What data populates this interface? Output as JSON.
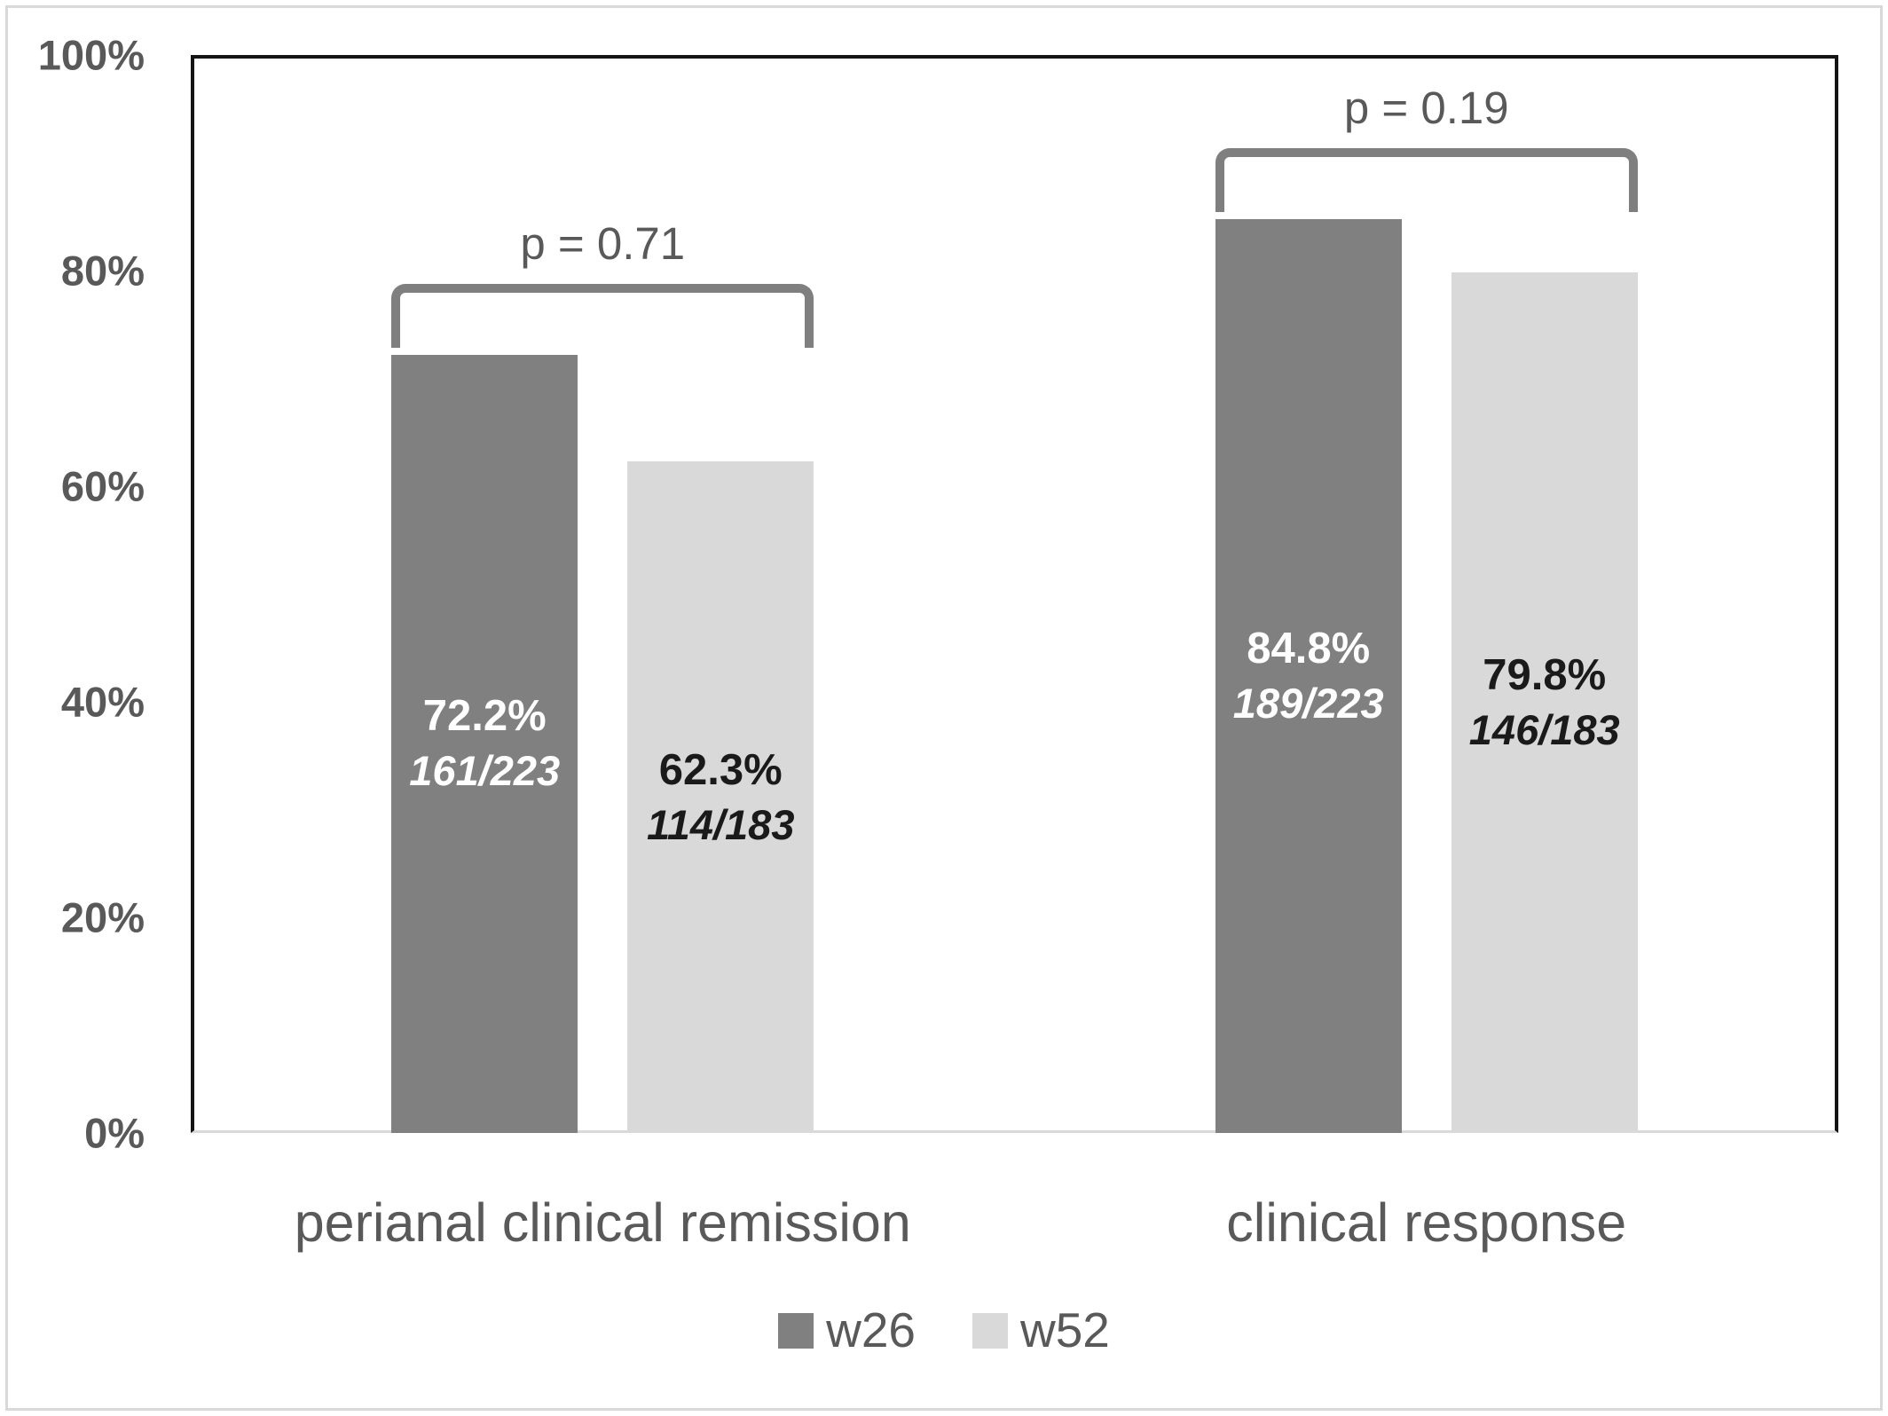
{
  "figure": {
    "background": "#ffffff",
    "outer_border_color": "#d9d9d9"
  },
  "chart_data": {
    "type": "bar",
    "title": "",
    "xlabel": "",
    "ylabel": "",
    "categories": [
      "perianal clinical remission",
      "clinical response"
    ],
    "series": [
      {
        "name": "w26",
        "color": "#808080",
        "label_color": "#ffffff",
        "values": [
          72.2,
          84.8
        ],
        "value_labels": [
          "72.2%",
          "84.8%"
        ],
        "fraction_labels": [
          "161/223",
          "189/223"
        ]
      },
      {
        "name": "w52",
        "color": "#d9d9d9",
        "label_color": "#1a1a1a",
        "values": [
          62.3,
          79.8
        ],
        "value_labels": [
          "62.3%",
          "79.8%"
        ],
        "fraction_labels": [
          "114/183",
          "146/183"
        ]
      }
    ],
    "p_values": [
      "p = 0.71",
      "p = 0.19"
    ],
    "y_axis": {
      "min": 0,
      "max": 100,
      "tick_values": [
        0,
        20,
        40,
        60,
        80,
        100
      ],
      "tick_labels": [
        "0%",
        "20%",
        "40%",
        "60%",
        "80%",
        "100%"
      ],
      "tick_color": "#595959"
    },
    "legend": {
      "position": "bottom-center",
      "items": [
        {
          "label": "w26",
          "color": "#808080"
        },
        {
          "label": "w52",
          "color": "#d9d9d9"
        }
      ]
    },
    "grid": false,
    "bracket_color": "#7f7f7f",
    "annotation_text_color": "#595959",
    "axis_line_color": "#141414",
    "baseline_color": "#d9d9d9"
  }
}
